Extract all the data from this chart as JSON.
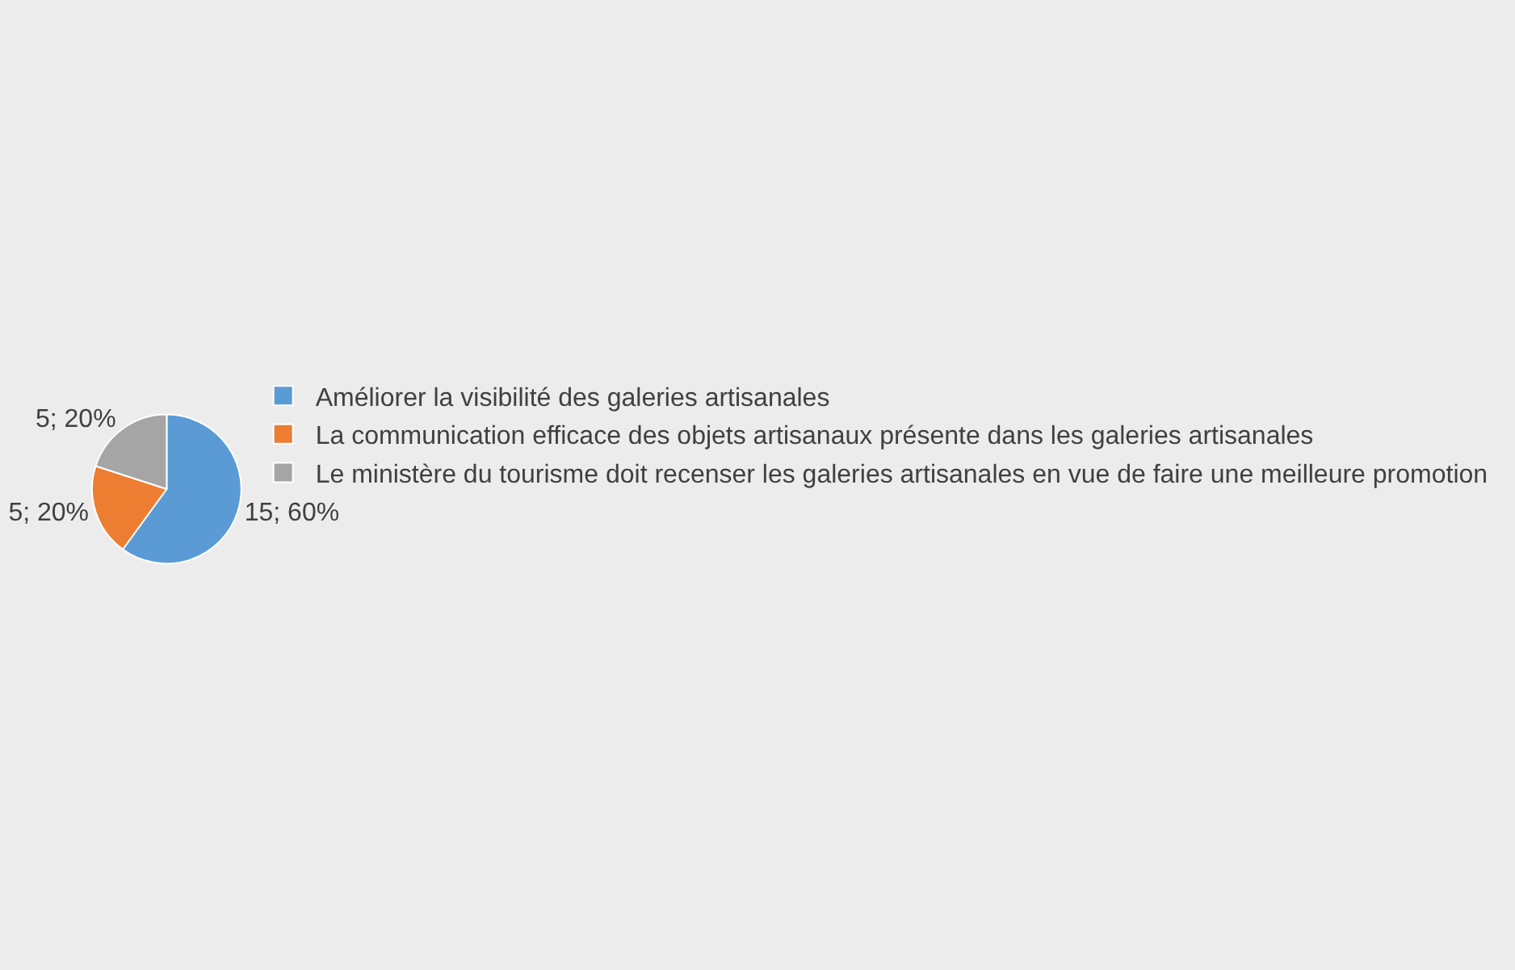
{
  "chart_data": {
    "type": "pie",
    "categories": [
      "Améliorer la visibilité des galeries artisanales",
      "La communication efficace des objets artisanaux présente dans les galeries artisanales",
      "Le ministère du tourisme doit recenser les galeries artisanales en vue de faire une meilleure promotion"
    ],
    "values": [
      15,
      5,
      5
    ],
    "value_labels": [
      "15; 60%",
      "5; 20%",
      "5; 20%"
    ],
    "colors": [
      "#5b9bd5",
      "#ed7d31",
      "#a5a5a5"
    ],
    "legend": "right"
  }
}
